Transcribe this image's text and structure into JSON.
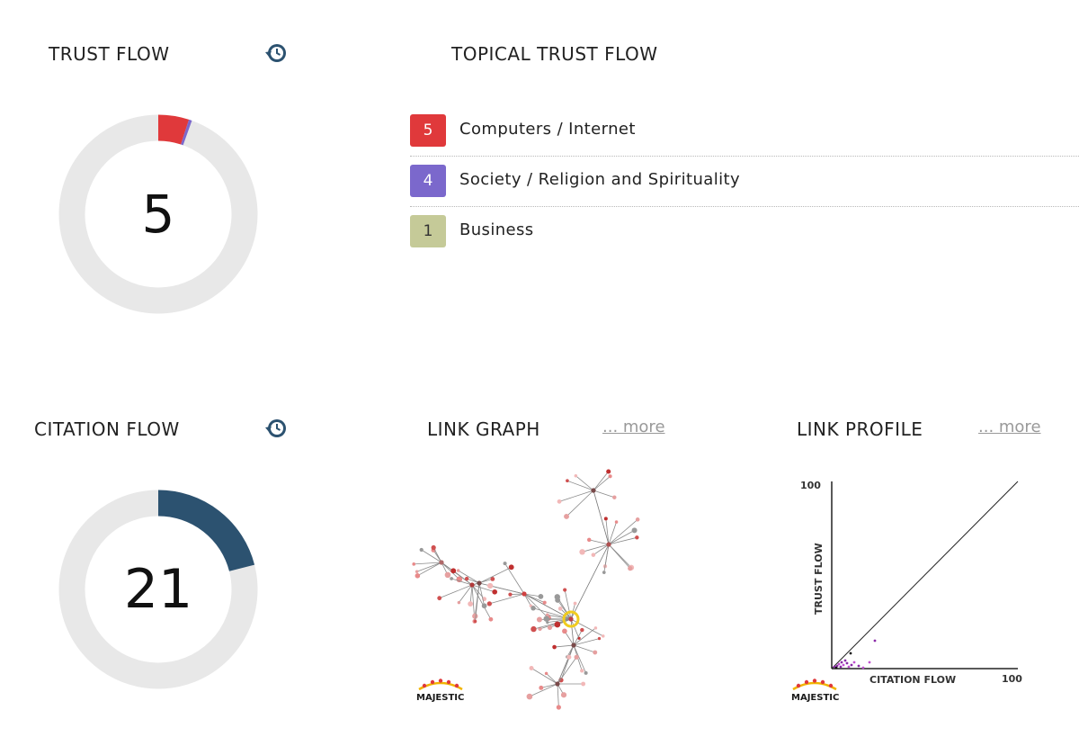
{
  "trust_flow": {
    "heading": "TRUST FLOW",
    "value": "5",
    "history_icon": "history-clock-icon",
    "segments": [
      {
        "value": 5,
        "color": "#e0393b"
      },
      {
        "value": 0.5,
        "color": "#7b68cc"
      }
    ],
    "track_color": "#e8e8e8"
  },
  "topical_trust_flow": {
    "heading": "TOPICAL TRUST FLOW",
    "items": [
      {
        "score": "5",
        "label": "Computers / Internet",
        "color": "#e0393b"
      },
      {
        "score": "4",
        "label": "Society / Religion and Spirituality",
        "color": "#7b68cc"
      },
      {
        "score": "1",
        "label": "Business",
        "color": "#c5ca98"
      }
    ]
  },
  "citation_flow": {
    "heading": "CITATION FLOW",
    "value": "21",
    "history_icon": "history-clock-icon",
    "segments": [
      {
        "value": 21,
        "color": "#2c5270"
      }
    ],
    "track_color": "#e8e8e8"
  },
  "link_graph": {
    "heading": "LINK GRAPH",
    "more": "... more",
    "logo_text": "MAJESTIC"
  },
  "link_profile": {
    "heading": "LINK PROFILE",
    "more": "... more",
    "logo_text": "MAJESTIC",
    "y_label": "TRUST FLOW",
    "x_label": "CITATION FLOW",
    "y_max_label": "100",
    "x_max_label": "100"
  }
}
